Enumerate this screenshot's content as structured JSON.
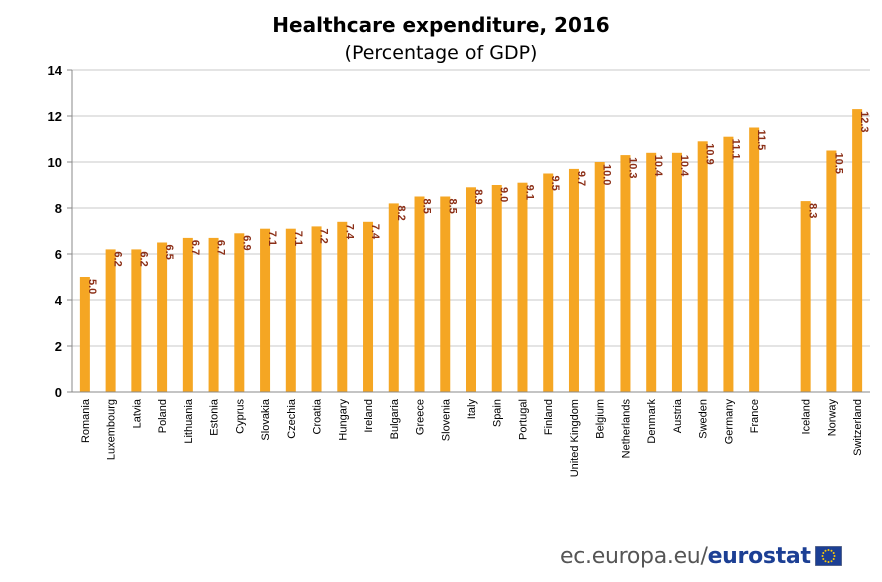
{
  "chart_data": {
    "type": "bar",
    "title": "Healthcare expenditure, 2016",
    "subtitle": "(Percentage of GDP)",
    "categories": [
      "Romania",
      "Luxembourg",
      "Latvia",
      "Poland",
      "Lithuania",
      "Estonia",
      "Cyprus",
      "Slovakia",
      "Czechia",
      "Croatia",
      "Hungary",
      "Ireland",
      "Bulgaria",
      "Greece",
      "Slovenia",
      "Italy",
      "Spain",
      "Portugal",
      "Finland",
      "United Kingdom",
      "Belgium",
      "Netherlands",
      "Denmark",
      "Austria",
      "Sweden",
      "Germany",
      "France",
      "Iceland",
      "Norway",
      "Switzerland"
    ],
    "values": [
      5.0,
      6.2,
      6.2,
      6.5,
      6.7,
      6.7,
      6.9,
      7.1,
      7.1,
      7.2,
      7.4,
      7.4,
      8.2,
      8.5,
      8.5,
      8.9,
      9.0,
      9.1,
      9.5,
      9.7,
      10.0,
      10.3,
      10.4,
      10.4,
      10.9,
      11.1,
      11.5,
      8.3,
      10.5,
      12.3
    ],
    "data_labels": [
      "5.0",
      "6.2",
      "6.2",
      "6.5",
      "6.7",
      "6.7",
      "6.9",
      "7.1",
      "7.1",
      "7.2",
      "7.4",
      "7.4",
      "8.2",
      "8.5",
      "8.5",
      "8.9",
      "9.0",
      "9.1",
      "9.5",
      "9.7",
      "10.0",
      "10.3",
      "10.4",
      "10.4",
      "10.9",
      "11.1",
      "11.5",
      "8.3",
      "10.5",
      "12.3"
    ],
    "groups": [
      27,
      3
    ],
    "ylim": [
      0,
      14
    ],
    "yticks": [
      "0",
      "2",
      "4",
      "6",
      "8",
      "10",
      "12",
      "14"
    ],
    "xlabel": "",
    "ylabel": "",
    "grid": true,
    "bar_color": "#f5a623",
    "label_color": "#8b2e16",
    "grid_color": "#c8c8c8"
  },
  "footer": {
    "site": "ec.europa.eu/",
    "brand": "eurostat",
    "flag_blue": "#1c3f94",
    "flag_star": "#ffcc00"
  }
}
